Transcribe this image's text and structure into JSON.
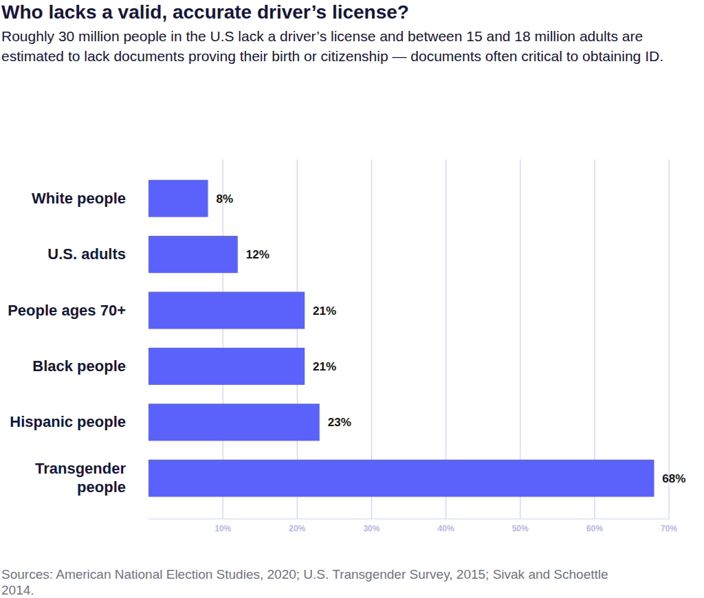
{
  "chart_data": {
    "type": "bar",
    "orientation": "horizontal",
    "title": "Who lacks a valid, accurate driver’s license?",
    "subtitle": "Roughly 30 million people in the U.S lack a driver’s license and between 15 and 18 million adults are estimated to lack documents proving their birth or citizenship — documents often critical to obtaining ID.",
    "source": "Sources: American National Election Studies, 2020; U.S. Transgender Survey, 2015; Sivak and Schoettle 2014.",
    "categories": [
      "White people",
      "U.S. adults",
      "People ages 70+",
      "Black people",
      "Hispanic people",
      "Transgender people"
    ],
    "values": [
      8,
      12,
      21,
      21,
      23,
      68
    ],
    "value_labels": [
      "8%",
      "12%",
      "21%",
      "21%",
      "23%",
      "68%"
    ],
    "data_labels": true,
    "color": "#5b61fb",
    "xlim": [
      0,
      70
    ],
    "xticks": [
      {
        "value": 10,
        "label": "10%"
      },
      {
        "value": 20,
        "label": "20%"
      },
      {
        "value": 30,
        "label": "30%"
      },
      {
        "value": 40,
        "label": "40%"
      },
      {
        "value": 50,
        "label": "50%"
      },
      {
        "value": 60,
        "label": "60%"
      },
      {
        "value": 70,
        "label": "70%"
      }
    ],
    "grid": true
  }
}
